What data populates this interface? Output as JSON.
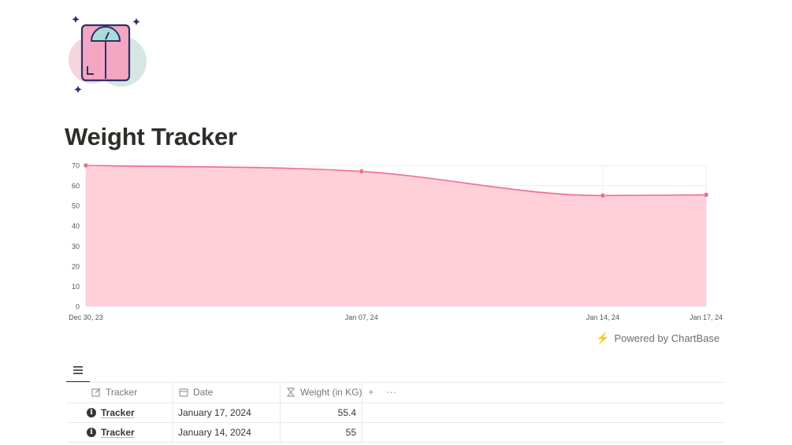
{
  "page": {
    "title": "Weight Tracker",
    "icon": "weighing-scale-icon"
  },
  "chart_data": {
    "type": "area",
    "x": [
      "Dec 30, 23",
      "Jan 07, 24",
      "Jan 14, 24",
      "Jan 17, 24"
    ],
    "dates": [
      "2023-12-30",
      "2024-01-07",
      "2024-01-14",
      "2024-01-17"
    ],
    "values": [
      70,
      67,
      55,
      55.4
    ],
    "ylim": [
      0,
      70
    ],
    "yticks": [
      0,
      10,
      20,
      30,
      40,
      50,
      60,
      70
    ],
    "grid": true,
    "line_color": "#f06b8e",
    "fill_color": "#ffcfda"
  },
  "powered_by": "Powered by ChartBase",
  "table": {
    "view_icon": "list-icon",
    "columns": [
      {
        "label": "Tracker",
        "icon": "edit-icon"
      },
      {
        "label": "Date",
        "icon": "calendar-icon"
      },
      {
        "label": "Weight (in KG)",
        "icon": "formula-icon"
      }
    ],
    "add_label": "+",
    "more_label": "···",
    "rows": [
      {
        "tracker": "Tracker",
        "date": "January 17, 2024",
        "weight": "55.4"
      },
      {
        "tracker": "Tracker",
        "date": "January 14, 2024",
        "weight": "55"
      }
    ]
  }
}
